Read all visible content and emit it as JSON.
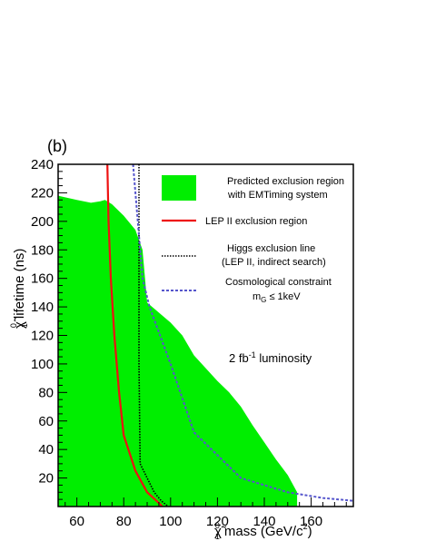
{
  "chart_data": {
    "type": "area",
    "panel_label": "(b)",
    "xlabel": "mass (GeV/c",
    "xlabel_symbol": "χ̃",
    "xlabel_sub": "1",
    "xlabel_sup_symbol": "0",
    "xlabel_sup": "2",
    "xlabel_close": ")",
    "ylabel_symbol": "χ̃",
    "ylabel_sup": "0",
    "ylabel_sub": "1",
    "ylabel": "lifetime (ns)",
    "xlim": [
      52,
      178
    ],
    "ylim": [
      0,
      240
    ],
    "xticks": [
      60,
      80,
      100,
      120,
      140,
      160
    ],
    "yticks": [
      20,
      40,
      60,
      80,
      100,
      120,
      140,
      160,
      180,
      200,
      220,
      240
    ],
    "series": [
      {
        "name": "Predicted exclusion region",
        "name_line2": "with EMTiming system",
        "kind": "area",
        "color": "#00ee00",
        "x": [
          52,
          60,
          66,
          70,
          72,
          75,
          80,
          85,
          88,
          90,
          95,
          100,
          105,
          110,
          115,
          120,
          125,
          130,
          135,
          140,
          145,
          150,
          154,
          154,
          98,
          52
        ],
        "y": [
          218,
          215,
          213,
          214,
          215,
          212,
          204,
          194,
          180,
          143,
          136,
          129,
          120,
          106,
          97,
          88,
          80,
          70,
          57,
          45,
          33,
          22,
          10,
          0,
          0,
          0
        ]
      },
      {
        "name": "LEP II exclusion region",
        "kind": "line",
        "color": "#ee1111",
        "dash": "solid",
        "x": [
          73,
          73.5,
          74.5,
          76,
          78,
          80,
          85,
          90,
          94,
          96.5
        ],
        "y": [
          240,
          200,
          160,
          120,
          80,
          50,
          25,
          10,
          4,
          0
        ]
      },
      {
        "name": "Higgs exclusion line",
        "name_line2": "(LEP II, indirect search)",
        "kind": "line",
        "color": "#000000",
        "dash": "dotted",
        "x": [
          86.5,
          86.5,
          86.5,
          87,
          90,
          93,
          96,
          99
        ],
        "y": [
          240,
          180,
          100,
          30,
          20,
          10,
          4,
          0
        ]
      },
      {
        "name": "Cosmological constraint",
        "name_line2": "m",
        "name_line2_sub": "G",
        "name_line2_rest": " ≤ 1keV",
        "kind": "line",
        "color": "#5555cc",
        "dash": "dashed",
        "x": [
          84,
          86,
          88,
          91,
          100,
          110,
          130,
          150,
          165,
          178
        ],
        "y": [
          240,
          200,
          160,
          140,
          100,
          52,
          20,
          10,
          6,
          4
        ]
      }
    ],
    "annotations": [
      {
        "text": "2 fb",
        "sup": "-1",
        "rest": " luminosity",
        "x": 132,
        "y": 100
      }
    ],
    "legend_position": "top-right"
  }
}
